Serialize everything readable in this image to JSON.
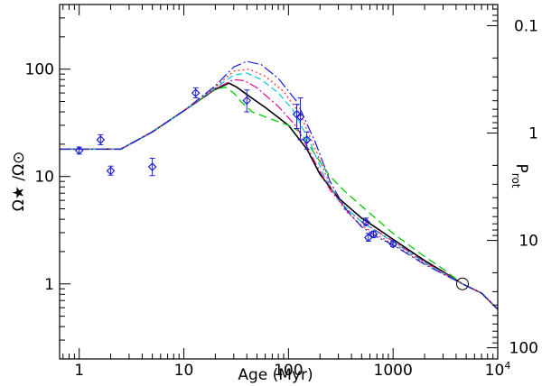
{
  "chart_data": {
    "type": "line",
    "title": "",
    "xlabel": "Age (Myr)",
    "ylabel_left": "Ω★ /Ω⊙",
    "ylabel_right": "P",
    "ylabel_right_sub": "rot",
    "xscale": "log",
    "yscale": "log",
    "xlim": [
      0.65,
      10000
    ],
    "ylim": [
      0.2,
      400
    ],
    "x_ticks": [
      {
        "value": 1,
        "label": "1"
      },
      {
        "value": 10,
        "label": "10"
      },
      {
        "value": 100,
        "label": "100"
      },
      {
        "value": 1000,
        "label": "1000"
      },
      {
        "value": 10000,
        "label": "10",
        "sup": "4"
      }
    ],
    "y_ticks_left": [
      {
        "value": 1,
        "label": "1"
      },
      {
        "value": 10,
        "label": "10"
      },
      {
        "value": 100,
        "label": "100"
      }
    ],
    "y_ticks_right": [
      {
        "prot": 0.1,
        "label": "0.1"
      },
      {
        "prot": 1,
        "label": "1"
      },
      {
        "prot": 10,
        "label": "10"
      },
      {
        "prot": 100,
        "label": "100"
      }
    ],
    "prot_conversion": "omega = 25.4 / prot",
    "observations": [
      {
        "age": 1.0,
        "omega": 17.5,
        "lo": 16.2,
        "hi": 18.8
      },
      {
        "age": 1.6,
        "omega": 22.0,
        "lo": 19.8,
        "hi": 24.5
      },
      {
        "age": 2.0,
        "omega": 11.3,
        "lo": 10.3,
        "hi": 12.5
      },
      {
        "age": 5.0,
        "omega": 12.3,
        "lo": 10.2,
        "hi": 14.8
      },
      {
        "age": 13.0,
        "omega": 60.0,
        "lo": 54.0,
        "hi": 67.0
      },
      {
        "age": 40.0,
        "omega": 51.0,
        "lo": 40.0,
        "hi": 64.0
      },
      {
        "age": 120.0,
        "omega": 38.0,
        "lo": 28.0,
        "hi": 47.0
      },
      {
        "age": 130.0,
        "omega": 36.0,
        "lo": 22.0,
        "hi": 54.0
      },
      {
        "age": 150.0,
        "omega": 22.0,
        "lo": 18.0,
        "hi": 26.0
      },
      {
        "age": 550.0,
        "omega": 3.75,
        "lo": 3.5,
        "hi": 4.1
      },
      {
        "age": 580.0,
        "omega": 2.7,
        "lo": 2.5,
        "hi": 2.95
      },
      {
        "age": 650.0,
        "omega": 2.9,
        "lo": 2.7,
        "hi": 3.1
      },
      {
        "age": 1000.0,
        "omega": 2.35,
        "lo": 2.22,
        "hi": 2.5
      }
    ],
    "sun": {
      "age": 4600,
      "omega": 1.0
    },
    "series": [
      {
        "name": "model-black",
        "color": "#000000",
        "dash": "",
        "width": 1.6,
        "points": [
          [
            0.65,
            18
          ],
          [
            2.5,
            18
          ],
          [
            5,
            26
          ],
          [
            10,
            41
          ],
          [
            20,
            65
          ],
          [
            27,
            74
          ],
          [
            32,
            68
          ],
          [
            40,
            58
          ],
          [
            60,
            44
          ],
          [
            100,
            30
          ],
          [
            150,
            18
          ],
          [
            200,
            10.5
          ],
          [
            300,
            6.3
          ],
          [
            500,
            4.1
          ],
          [
            700,
            3.3
          ],
          [
            1000,
            2.6
          ],
          [
            2000,
            1.65
          ],
          [
            3000,
            1.3
          ],
          [
            4600,
            1.0
          ],
          [
            7000,
            0.82
          ],
          [
            10000,
            0.58
          ]
        ]
      },
      {
        "name": "model-green",
        "color": "#00cc00",
        "dash": "9,5",
        "width": 1.3,
        "points": [
          [
            0.65,
            18
          ],
          [
            2.5,
            18
          ],
          [
            5,
            26
          ],
          [
            10,
            41
          ],
          [
            20,
            65
          ],
          [
            25,
            68
          ],
          [
            30,
            60
          ],
          [
            35,
            50
          ],
          [
            45,
            40
          ],
          [
            70,
            34
          ],
          [
            100,
            30
          ],
          [
            130,
            26
          ],
          [
            180,
            16
          ],
          [
            250,
            10
          ],
          [
            350,
            7.2
          ],
          [
            500,
            5.3
          ],
          [
            700,
            4.0
          ],
          [
            1000,
            2.95
          ],
          [
            2000,
            1.8
          ],
          [
            3000,
            1.38
          ],
          [
            4600,
            1.0
          ],
          [
            7000,
            0.82
          ],
          [
            10000,
            0.58
          ]
        ]
      },
      {
        "name": "model-magenta",
        "color": "#e0008a",
        "dash": "10,3,2,3",
        "width": 1.2,
        "points": [
          [
            0.65,
            18
          ],
          [
            2.5,
            18
          ],
          [
            5,
            26
          ],
          [
            10,
            41
          ],
          [
            20,
            66
          ],
          [
            30,
            80
          ],
          [
            38,
            78
          ],
          [
            50,
            67
          ],
          [
            80,
            45
          ],
          [
            120,
            29
          ],
          [
            180,
            13.5
          ],
          [
            250,
            7.5
          ],
          [
            350,
            5.1
          ],
          [
            500,
            3.8
          ],
          [
            700,
            3.1
          ],
          [
            1000,
            2.5
          ],
          [
            2000,
            1.6
          ],
          [
            3000,
            1.28
          ],
          [
            4600,
            1.0
          ],
          [
            7000,
            0.82
          ],
          [
            10000,
            0.58
          ]
        ]
      },
      {
        "name": "model-cyan",
        "color": "#00c8e0",
        "dash": "7,4",
        "width": 1.2,
        "points": [
          [
            0.65,
            18
          ],
          [
            2.5,
            18
          ],
          [
            5,
            26
          ],
          [
            10,
            41
          ],
          [
            20,
            67
          ],
          [
            30,
            88
          ],
          [
            40,
            92
          ],
          [
            55,
            80
          ],
          [
            80,
            60
          ],
          [
            110,
            42
          ],
          [
            160,
            21
          ],
          [
            220,
            10
          ],
          [
            300,
            6.0
          ],
          [
            450,
            4.1
          ],
          [
            700,
            3.05
          ],
          [
            1000,
            2.45
          ],
          [
            2000,
            1.58
          ],
          [
            3000,
            1.27
          ],
          [
            4600,
            1.0
          ],
          [
            7000,
            0.82
          ],
          [
            10000,
            0.58
          ]
        ]
      },
      {
        "name": "model-red",
        "color": "#ff3030",
        "dash": "2,3",
        "width": 1.3,
        "points": [
          [
            0.65,
            18
          ],
          [
            2.5,
            18
          ],
          [
            5,
            26
          ],
          [
            10,
            41
          ],
          [
            20,
            68
          ],
          [
            30,
            96
          ],
          [
            42,
            100
          ],
          [
            60,
            86
          ],
          [
            90,
            62
          ],
          [
            130,
            38
          ],
          [
            190,
            16
          ],
          [
            260,
            7.5
          ],
          [
            350,
            4.8
          ],
          [
            500,
            3.5
          ],
          [
            700,
            2.85
          ],
          [
            1000,
            2.35
          ],
          [
            2000,
            1.55
          ],
          [
            3000,
            1.25
          ],
          [
            4600,
            1.0
          ],
          [
            7000,
            0.82
          ],
          [
            10000,
            0.58
          ]
        ]
      },
      {
        "name": "model-blue",
        "color": "#1a1ad8",
        "dash": "12,3,2,3",
        "width": 1.2,
        "points": [
          [
            0.65,
            18
          ],
          [
            2.5,
            18
          ],
          [
            5,
            26
          ],
          [
            10,
            41
          ],
          [
            20,
            70
          ],
          [
            30,
            105
          ],
          [
            40,
            118
          ],
          [
            55,
            110
          ],
          [
            80,
            82
          ],
          [
            120,
            50
          ],
          [
            180,
            21
          ],
          [
            250,
            9
          ],
          [
            350,
            5.0
          ],
          [
            500,
            3.4
          ],
          [
            700,
            2.75
          ],
          [
            1000,
            2.3
          ],
          [
            2000,
            1.52
          ],
          [
            3000,
            1.24
          ],
          [
            4600,
            1.0
          ],
          [
            7000,
            0.82
          ],
          [
            10000,
            0.58
          ]
        ]
      }
    ],
    "colors": {
      "observation": "#1f1fd0",
      "axis": "#000000",
      "sun": "#000000"
    }
  }
}
